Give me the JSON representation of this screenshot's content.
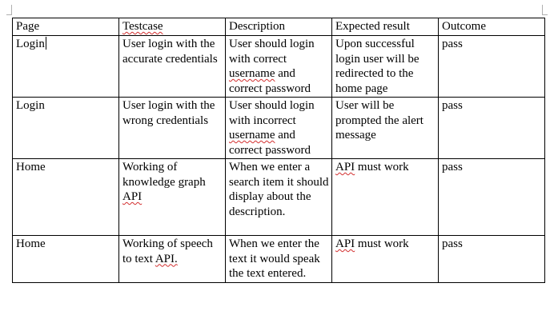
{
  "table": {
    "headers": {
      "page": "Page",
      "testcase": "Testcase",
      "description": "Description",
      "expected": "Expected result",
      "outcome": "Outcome"
    },
    "rows": [
      {
        "page": "Login",
        "testcase": "User login with the accurate credentials",
        "description_a": "User should login with correct ",
        "description_b": "username",
        "description_c": " and correct password",
        "expected": "Upon successful login user will be redirected to the home page",
        "outcome": "pass"
      },
      {
        "page": "Login",
        "testcase": "User login with the wrong credentials",
        "description_a": "User should login with incorrect ",
        "description_b": "username",
        "description_c": " and correct password",
        "expected": "User will be prompted the alert message",
        "outcome": "pass"
      },
      {
        "page": "Home",
        "testcase_a": "Working of knowledge graph ",
        "testcase_b": "API",
        "description": "When we enter a search item it should display about the description.",
        "expected_a": "API",
        "expected_b": " must work",
        "outcome": "pass"
      },
      {
        "page": "Home",
        "testcase_a": "Working of speech to text ",
        "testcase_b": "API.",
        "description": "When we enter the text it would speak the text entered.",
        "expected_a": "API",
        "expected_b": " must work",
        "outcome": "pass"
      }
    ]
  }
}
